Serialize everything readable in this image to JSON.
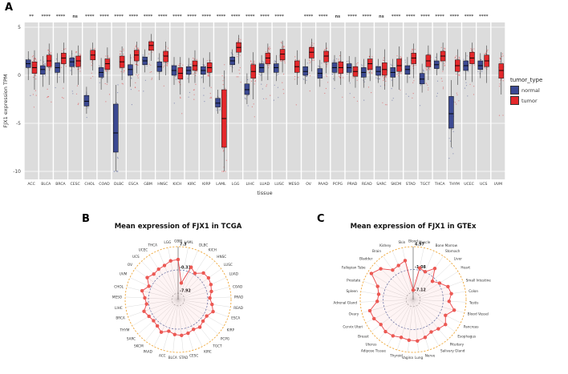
{
  "figure": {
    "panels": {
      "a": {
        "label": "A"
      },
      "b": {
        "label": "B"
      },
      "c": {
        "label": "C"
      }
    }
  },
  "chart_data": [
    {
      "id": "fjx1-expression-boxplot",
      "type": "boxplot",
      "xlabel": "tissue",
      "ylabel": "FJX1 expression TPM",
      "ylim": [
        -10,
        5
      ],
      "yticks": [
        5,
        0,
        -5,
        -10
      ],
      "colors": {
        "normal": "#3B4992",
        "tumor": "#E4282B"
      },
      "legend": {
        "title": "tumor_type",
        "position": "right",
        "entries": [
          {
            "label": "normal",
            "color": "#3B4992"
          },
          {
            "label": "tumor",
            "color": "#E4282B"
          }
        ]
      },
      "categories": [
        "ACC",
        "BLCA",
        "BRCA",
        "CESC",
        "CHOL",
        "COAD",
        "DLBC",
        "ESCA",
        "GBM",
        "HNSC",
        "KICH",
        "KIRC",
        "KIRP",
        "LAML",
        "LGG",
        "LIHC",
        "LUAD",
        "LUSC",
        "MESO",
        "OV",
        "PAAD",
        "PCPG",
        "PRAD",
        "READ",
        "SARC",
        "SKCM",
        "STAD",
        "TGCT",
        "THCA",
        "THYM",
        "UCEC",
        "UCS",
        "UVM"
      ],
      "significance": [
        "**",
        "****",
        "****",
        "ns",
        "****",
        "****",
        "****",
        "****",
        "****",
        "****",
        "****",
        "****",
        "****",
        "****",
        "****",
        "****",
        "****",
        "****",
        "",
        "****",
        "****",
        "ns",
        "****",
        "****",
        "ns",
        "****",
        "****",
        "****",
        "****",
        "****",
        "****",
        "****",
        ""
      ],
      "normal": [
        [
          -0.5,
          0.8,
          1.2,
          1.6,
          2.5
        ],
        [
          -1.2,
          0.1,
          0.6,
          1.0,
          2.0
        ],
        [
          -0.8,
          0.3,
          0.8,
          1.3,
          2.3
        ],
        [
          0.0,
          0.9,
          1.4,
          1.8,
          2.6
        ],
        [
          -4.0,
          -3.2,
          -2.7,
          -2.1,
          -1.2
        ],
        [
          -1.5,
          -0.2,
          0.3,
          0.8,
          1.8
        ],
        [
          -10,
          -8.0,
          -6.0,
          -3.0,
          -1.0
        ],
        [
          -1.2,
          0.0,
          0.6,
          1.1,
          2.2
        ],
        [
          0.3,
          1.1,
          1.5,
          1.9,
          2.7
        ],
        [
          -0.5,
          0.4,
          0.9,
          1.4,
          2.3
        ],
        [
          -1.0,
          0.0,
          0.5,
          1.0,
          1.9
        ],
        [
          -0.8,
          0.1,
          0.5,
          0.9,
          1.8
        ],
        [
          -0.8,
          0.1,
          0.5,
          0.9,
          1.8
        ],
        [
          -4.0,
          -3.3,
          -2.9,
          -2.4,
          -1.5
        ],
        [
          0.3,
          1.1,
          1.5,
          1.9,
          2.7
        ],
        [
          -3.0,
          -2.0,
          -1.5,
          -0.9,
          0.2
        ],
        [
          -0.6,
          0.3,
          0.8,
          1.2,
          2.1
        ],
        [
          -0.6,
          0.3,
          0.8,
          1.2,
          2.1
        ],
        null,
        [
          -0.9,
          0.0,
          0.4,
          0.9,
          1.7
        ],
        [
          -1.2,
          -0.3,
          0.2,
          0.7,
          1.6
        ],
        [
          -0.6,
          0.3,
          0.8,
          1.3,
          2.1
        ],
        [
          -0.7,
          0.3,
          0.8,
          1.2,
          2.0
        ],
        [
          -1.3,
          -0.2,
          0.3,
          0.8,
          1.7
        ],
        [
          -0.8,
          0.0,
          0.4,
          0.9,
          1.7
        ],
        [
          -1.2,
          -0.2,
          0.3,
          0.8,
          1.7
        ],
        [
          -0.8,
          0.1,
          0.6,
          1.0,
          1.9
        ],
        [
          -1.8,
          -0.9,
          -0.4,
          0.2,
          1.2
        ],
        [
          0.0,
          0.7,
          1.1,
          1.5,
          2.3
        ],
        [
          -7.5,
          -5.5,
          -4.0,
          -2.2,
          -0.5
        ],
        [
          -0.5,
          0.5,
          1.0,
          1.5,
          2.4
        ],
        [
          -0.3,
          0.6,
          1.0,
          1.5,
          2.3
        ],
        null
      ],
      "tumor": [
        [
          -1.5,
          0.2,
          0.8,
          1.4,
          2.6
        ],
        [
          -1.0,
          0.9,
          1.5,
          2.1,
          3.3
        ],
        [
          -0.8,
          1.2,
          1.8,
          2.3,
          3.4
        ],
        [
          -1.0,
          0.9,
          1.5,
          2.0,
          3.1
        ],
        [
          0.5,
          1.6,
          2.1,
          2.6,
          3.4
        ],
        [
          -0.8,
          0.6,
          1.2,
          1.7,
          2.9
        ],
        [
          -0.5,
          0.8,
          1.4,
          2.0,
          3.0
        ],
        [
          0.2,
          1.5,
          2.1,
          2.6,
          3.5
        ],
        [
          1.5,
          2.6,
          3.1,
          3.5,
          4.3
        ],
        [
          0.0,
          1.4,
          2.0,
          2.5,
          3.5
        ],
        [
          -2.0,
          -0.4,
          0.2,
          0.8,
          1.9
        ],
        [
          -0.8,
          0.5,
          1.0,
          1.5,
          2.6
        ],
        [
          -1.2,
          0.3,
          0.8,
          1.3,
          2.4
        ],
        [
          -10,
          -7.5,
          -4.5,
          -1.5,
          0.5
        ],
        [
          1.2,
          2.4,
          2.9,
          3.4,
          4.2
        ],
        [
          -2.5,
          -0.3,
          0.4,
          1.1,
          2.4
        ],
        [
          -0.5,
          1.2,
          1.8,
          2.3,
          3.3
        ],
        [
          0.3,
          1.6,
          2.2,
          2.7,
          3.6
        ],
        [
          -1.0,
          0.3,
          0.9,
          1.5,
          2.6
        ],
        [
          0.4,
          1.8,
          2.4,
          2.9,
          3.8
        ],
        [
          0.2,
          1.4,
          2.0,
          2.5,
          3.4
        ],
        [
          -1.0,
          0.2,
          0.8,
          1.4,
          2.5
        ],
        [
          -1.3,
          -0.1,
          0.4,
          0.9,
          1.9
        ],
        [
          -0.6,
          0.6,
          1.2,
          1.7,
          2.8
        ],
        [
          -1.5,
          0.0,
          0.6,
          1.3,
          2.7
        ],
        [
          -1.5,
          0.4,
          1.0,
          1.7,
          3.0
        ],
        [
          -0.3,
          1.2,
          1.8,
          2.3,
          3.3
        ],
        [
          -0.5,
          0.9,
          1.5,
          2.1,
          3.1
        ],
        [
          0.5,
          1.5,
          2.0,
          2.5,
          3.4
        ],
        [
          -1.0,
          0.4,
          1.0,
          1.6,
          2.7
        ],
        [
          -0.7,
          1.2,
          1.8,
          2.4,
          3.4
        ],
        [
          -0.8,
          0.9,
          1.5,
          2.1,
          3.1
        ],
        [
          -2.0,
          -0.3,
          0.5,
          1.2,
          2.4
        ]
      ]
    },
    {
      "id": "fjx1-radar-tcga",
      "type": "radar",
      "title": "Mean expression of FJX1 in TCGA",
      "vmin": -10,
      "vmax": 7.3,
      "ring_values": [
        7.3,
        -0.31,
        -7.92
      ],
      "ring_labels": [
        "7.3",
        "-0.31",
        "-7.92"
      ],
      "line_color": "#E8474B",
      "dot_color": "#ED5A52",
      "categories": [
        "GBM",
        "LAML",
        "DLBC",
        "KICH",
        "HNSC",
        "LUSC",
        "LUAD",
        "COAD",
        "PRAD",
        "READ",
        "ESCA",
        "KIRP",
        "PCPG",
        "TGCT",
        "KIRC",
        "CESC",
        "STAD",
        "BLCA",
        "ACC",
        "PAAD",
        "SKCM",
        "SARC",
        "THYM",
        "BRCA",
        "LIHC",
        "MESO",
        "CHOL",
        "UVM",
        "OV",
        "UCS",
        "UCEC",
        "THCA",
        "LGG"
      ],
      "values": [
        3.1,
        -4.5,
        1.4,
        0.2,
        2.0,
        2.2,
        1.8,
        1.2,
        0.4,
        1.2,
        2.1,
        0.8,
        0.8,
        1.5,
        1.0,
        1.5,
        1.8,
        1.5,
        0.8,
        2.0,
        1.0,
        0.6,
        1.0,
        1.8,
        0.4,
        0.9,
        2.1,
        0.5,
        2.4,
        1.5,
        1.8,
        2.0,
        2.9
      ]
    },
    {
      "id": "fjx1-radar-gtex",
      "type": "radar",
      "title": "Mean expression of FJX1 in GTEx",
      "vmin": -9,
      "vmax": 4.97,
      "ring_values": [
        4.97,
        -1.08,
        -7.12
      ],
      "ring_labels": [
        "4.97",
        "-1.08",
        "-7.12"
      ],
      "line_color": "#E8474B",
      "dot_color": "#ED5A52",
      "categories": [
        "Blood",
        "Muscle",
        "Bone Marrow",
        "Stomach",
        "Liver",
        "Heart",
        "Small Intestine",
        "Colon",
        "Testis",
        "Blood Vessel",
        "Pancreas",
        "Esophagus",
        "Pituitary",
        "Salivary Gland",
        "Nerve",
        "Lung",
        "Vagina",
        "Thyroid",
        "Adipose Tissue",
        "Uterus",
        "Breast",
        "Cervix Uteri",
        "Ovary",
        "Adrenal Gland",
        "Spleen",
        "Prostate",
        "Fallopian Tube",
        "Bladder",
        "Brain",
        "Kidney",
        "Skin"
      ],
      "values": [
        -6.5,
        -0.5,
        -1.0,
        1.0,
        -2.0,
        -0.8,
        0.8,
        1.2,
        0.5,
        2.2,
        0.5,
        1.8,
        1.2,
        0.8,
        1.5,
        2.0,
        1.8,
        1.5,
        2.0,
        2.2,
        1.8,
        2.5,
        2.8,
        0.5,
        0.2,
        1.0,
        4.0,
        2.8,
        0.5,
        0.8,
        1.5
      ]
    }
  ]
}
